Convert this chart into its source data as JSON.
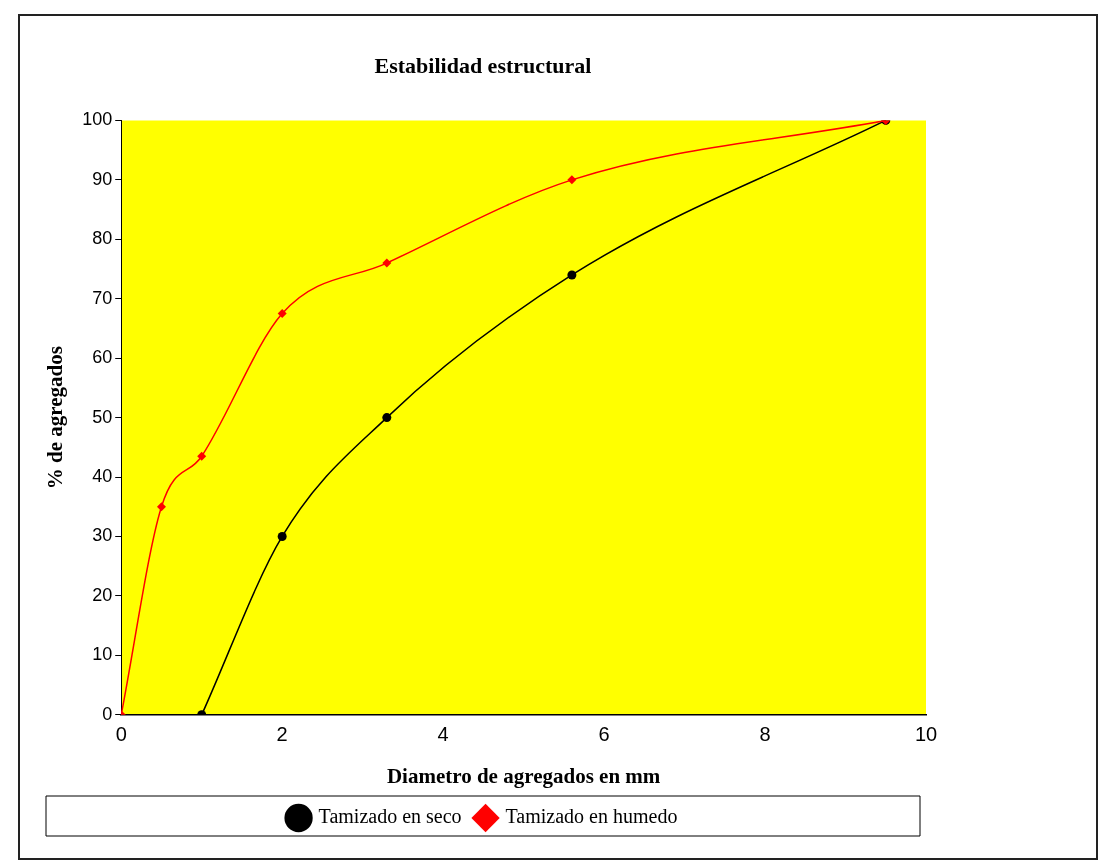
{
  "chart_data": {
    "type": "line",
    "title": "Estabilidad estructural",
    "xlabel": "Diametro de agregados en mm",
    "ylabel": "% de agregados",
    "series": [
      {
        "name": "Tamizado en seco",
        "color": "#000000",
        "marker": "circle",
        "x": [
          1.0,
          2.0,
          3.3,
          5.6,
          9.5
        ],
        "values": [
          0,
          30,
          50,
          74,
          100
        ]
      },
      {
        "name": "Tamizado en humedo",
        "color": "#ff0000",
        "marker": "diamond",
        "x": [
          0,
          0.5,
          1.0,
          2.0,
          3.3,
          5.6,
          9.5
        ],
        "values": [
          0,
          35,
          43.5,
          67.5,
          76,
          90,
          100
        ]
      }
    ],
    "xlim": [
      0,
      10
    ],
    "xticks": [
      0,
      2,
      4,
      6,
      8,
      10
    ],
    "ylim": [
      0,
      100
    ],
    "yticks": [
      0,
      10,
      20,
      30,
      40,
      50,
      60,
      70,
      80,
      90,
      100
    ],
    "grid": false,
    "legend": "bottom"
  }
}
